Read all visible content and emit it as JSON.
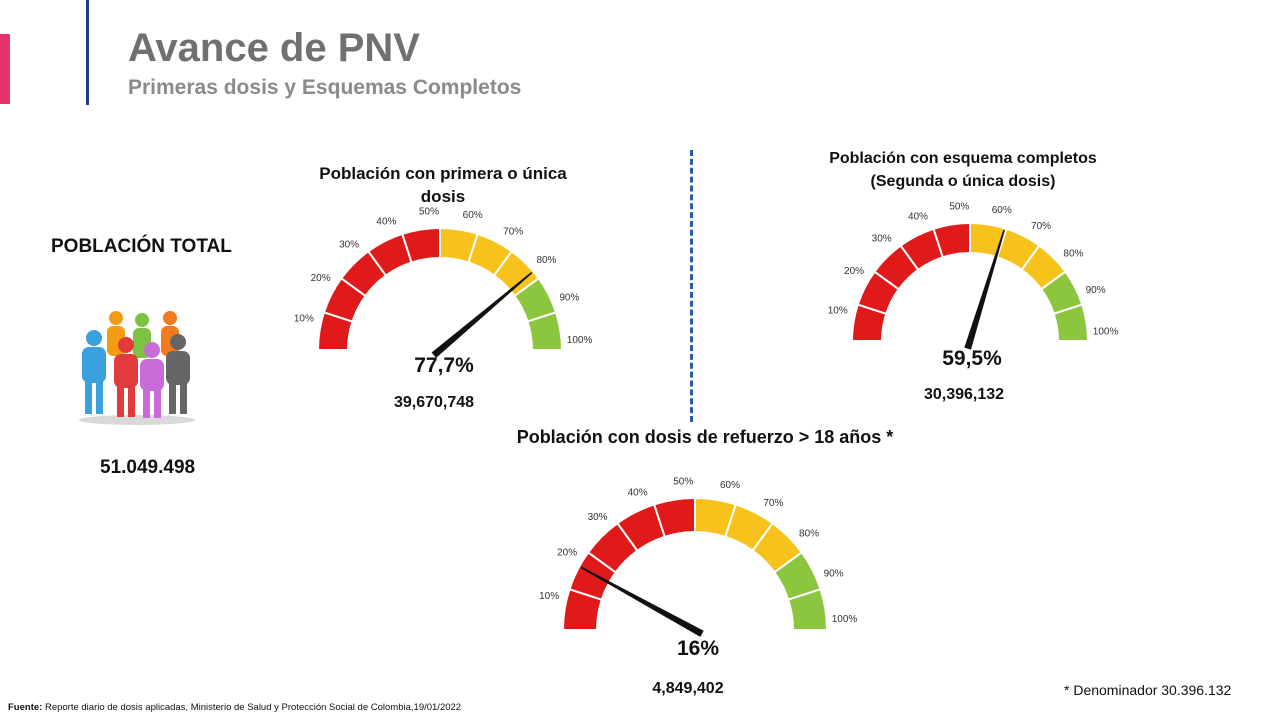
{
  "header": {
    "title": "Avance de PNV",
    "subtitle": "Primeras dosis y Esquemas Completos"
  },
  "population": {
    "label": "POBLACIÓN TOTAL",
    "value": "51.049.498",
    "icon": "people-group-icon"
  },
  "chart_data": [
    {
      "type": "gauge",
      "title": "Población con primera o única dosis",
      "ticks": [
        "10%",
        "20%",
        "30%",
        "40%",
        "50%",
        "60%",
        "70%",
        "80%",
        "90%",
        "100%"
      ],
      "value": 77.7,
      "value_label": "77,7%",
      "count_label": "39,670,748",
      "band_colors": [
        "#e01a1a",
        "#e01a1a",
        "#e01a1a",
        "#e01a1a",
        "#e01a1a",
        "#f7c21b",
        "#f7c21b",
        "#f7c21b",
        "#8cc63e",
        "#8cc63e"
      ]
    },
    {
      "type": "gauge",
      "title": "Población con esquema completos (Segunda o única dosis)",
      "ticks": [
        "10%",
        "20%",
        "30%",
        "40%",
        "50%",
        "60%",
        "70%",
        "80%",
        "90%",
        "100%"
      ],
      "value": 59.5,
      "value_label": "59,5%",
      "count_label": "30,396,132",
      "band_colors": [
        "#e01a1a",
        "#e01a1a",
        "#e01a1a",
        "#e01a1a",
        "#e01a1a",
        "#f7c21b",
        "#f7c21b",
        "#f7c21b",
        "#8cc63e",
        "#8cc63e"
      ]
    },
    {
      "type": "gauge",
      "title": "Población con dosis de refuerzo > 18 años *",
      "ticks": [
        "10%",
        "20%",
        "30%",
        "40%",
        "50%",
        "60%",
        "70%",
        "80%",
        "90%",
        "100%"
      ],
      "value": 16,
      "value_label": "16%",
      "count_label": "4,849,402",
      "band_colors": [
        "#e01a1a",
        "#e01a1a",
        "#e01a1a",
        "#e01a1a",
        "#e01a1a",
        "#f7c21b",
        "#f7c21b",
        "#f7c21b",
        "#8cc63e",
        "#8cc63e"
      ]
    }
  ],
  "footer": {
    "note": "* Denominador 30.396.132",
    "source_label": "Fuente:",
    "source_text": " Reporte diario de dosis aplicadas, Ministerio de Salud y Protección Social de Colombia,19/01/2022"
  }
}
